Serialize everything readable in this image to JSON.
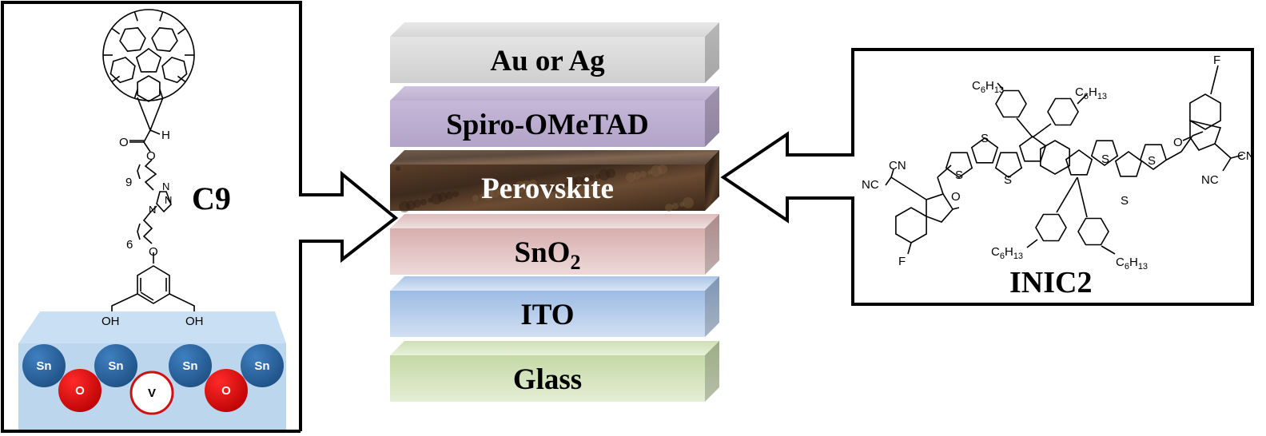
{
  "layer_stack": {
    "layers": [
      {
        "label": "Au or Ag",
        "color": "#d6d6d6",
        "text_color": "#000000"
      },
      {
        "label": "Spiro-OMeTAD",
        "color": "#b8a9cc",
        "text_color": "#000000"
      },
      {
        "label": "Perovskite",
        "color": "#4a3322",
        "text_color": "#ffffff"
      },
      {
        "label": "SnO",
        "subscript": "2",
        "color": "#dcb6b6",
        "text_color": "#000000"
      },
      {
        "label": "ITO",
        "color": "#aac4e6",
        "text_color": "#000000"
      },
      {
        "label": "Glass",
        "color": "#cfe0b4",
        "text_color": "#000000"
      }
    ]
  },
  "left_panel": {
    "molecule_name": "C9",
    "atoms": {
      "h": "H",
      "carbonyl_o": "O",
      "ester_o": "O",
      "repeat_9": "9",
      "n1": "N",
      "n2": "N",
      "n3": "N",
      "repeat_6": "6",
      "ether_o": "O",
      "oh_left": "OH",
      "oh_right": "OH"
    },
    "substrate": {
      "sn": "Sn",
      "o": "O",
      "vacancy": "V",
      "colors": {
        "sn": "#2e6aa6",
        "o": "#e01010",
        "vacancy": "#ffffff",
        "slab": "#bcd6ee"
      }
    }
  },
  "right_panel": {
    "molecule_name": "INIC2",
    "atoms": {
      "s": "S",
      "cn": "CN",
      "nc": "NC",
      "o": "O",
      "f": "F",
      "c6h13_c": "C",
      "c6h13_6": "6",
      "c6h13_h": "H",
      "c6h13_13": "13"
    }
  }
}
